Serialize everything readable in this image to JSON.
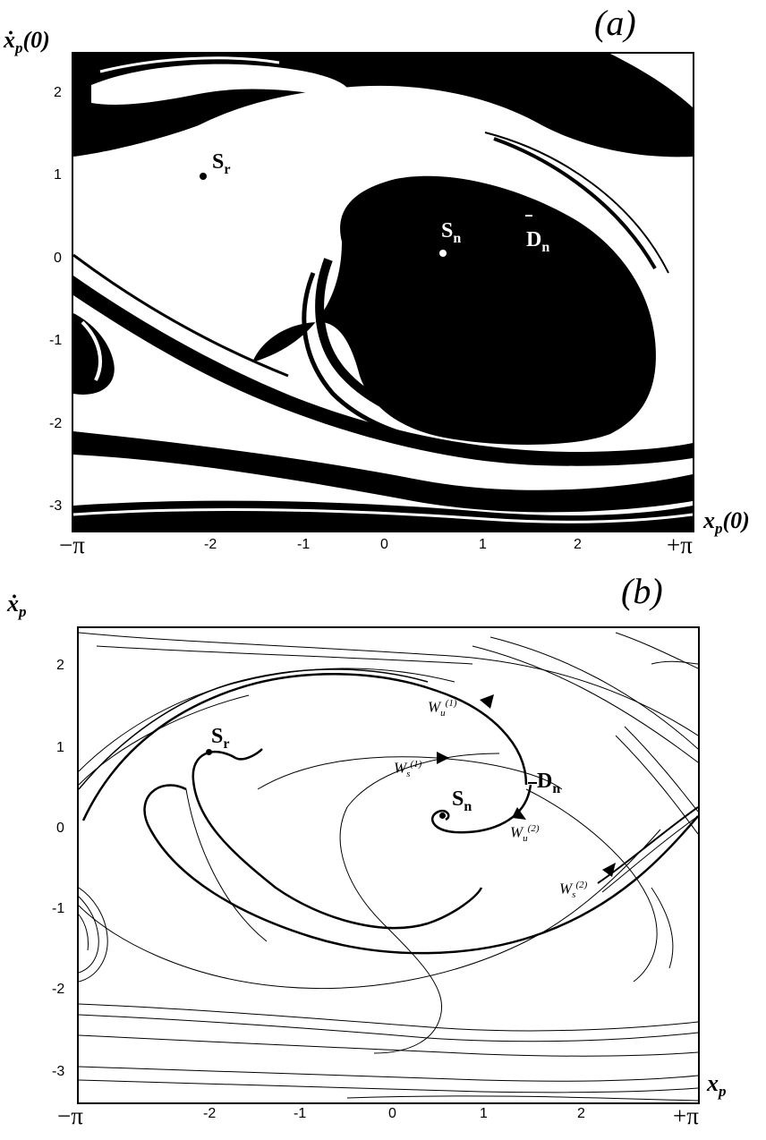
{
  "panel_a": {
    "label": "(a)",
    "y_axis_title": "ẋ",
    "y_axis_sub": "p",
    "y_axis_suffix": "(0)",
    "x_axis_title": "x",
    "x_axis_sub": "p",
    "x_axis_suffix": "(0)",
    "y_ticks": [
      "2",
      "1",
      "0",
      "-1",
      "-2",
      "-3"
    ],
    "x_ticks": [
      "−π",
      "-2",
      "-1",
      "0",
      "1",
      "2",
      "+π"
    ],
    "points": {
      "sr": {
        "name": "S",
        "sub": "r",
        "x": -1.9,
        "y": 1.0
      },
      "sn": {
        "name": "S",
        "sub": "n",
        "x": 0.6,
        "y": 0.05
      },
      "dn": {
        "name": "D",
        "sub": "n",
        "x": 1.5,
        "y": 0.35
      }
    }
  },
  "panel_b": {
    "label": "(b)",
    "y_axis_title": "ẋ",
    "y_axis_sub": "p",
    "x_axis_title": "x",
    "x_axis_sub": "p",
    "y_ticks": [
      "2",
      "1",
      "0",
      "-1",
      "-2",
      "-3"
    ],
    "x_ticks": [
      "−π",
      "-2",
      "-1",
      "0",
      "1",
      "2",
      "+π"
    ],
    "points": {
      "sr": {
        "name": "S",
        "sub": "r",
        "x": -1.9,
        "y": 0.95
      },
      "sn": {
        "name": "S",
        "sub": "n",
        "x": 0.45,
        "y": 0.15
      },
      "dn": {
        "name": "D",
        "sub": "n",
        "x": 1.45,
        "y": 0.4
      }
    },
    "manifolds": {
      "wu1": {
        "sym": "W",
        "sub": "u",
        "sup": "(1)"
      },
      "ws1": {
        "sym": "W",
        "sub": "s",
        "sup": "(1)"
      },
      "wu2": {
        "sym": "W",
        "sub": "u",
        "sup": "(2)"
      },
      "ws2": {
        "sym": "W",
        "sub": "s",
        "sup": "(2)"
      }
    }
  },
  "colors": {
    "ink": "#000000",
    "paper": "#ffffff"
  }
}
